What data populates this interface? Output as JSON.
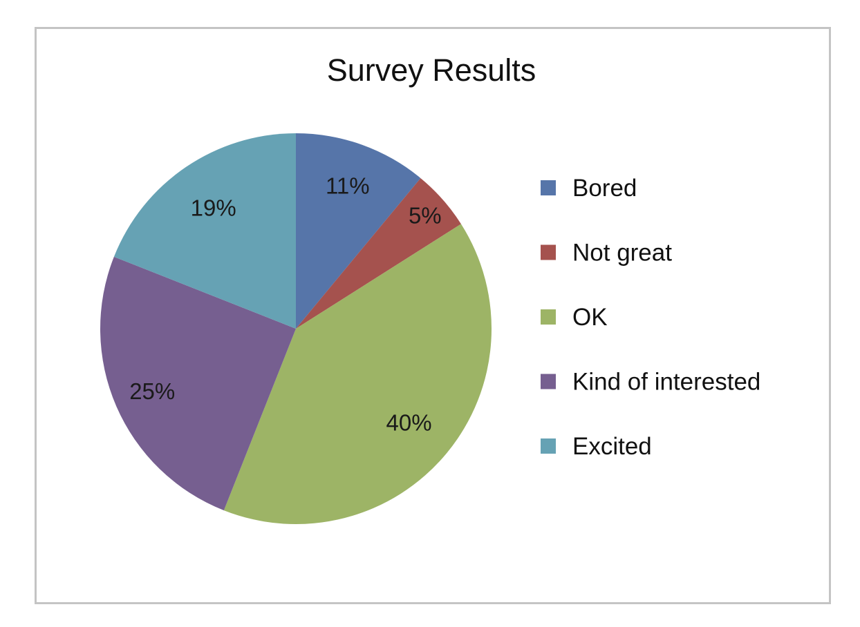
{
  "chart_data": {
    "type": "pie",
    "title": "Survey Results",
    "categories": [
      "Bored",
      "Not great",
      "OK",
      "Kind of interested",
      "Excited"
    ],
    "values": [
      11,
      5,
      40,
      25,
      19
    ],
    "labels": [
      "11%",
      "5%",
      "40%",
      "25%",
      "19%"
    ],
    "colors": [
      "#5675a9",
      "#a5524e",
      "#9db466",
      "#765f90",
      "#66a2b4"
    ],
    "legend_position": "right",
    "start_angle": "12 o'clock",
    "direction": "clockwise"
  }
}
